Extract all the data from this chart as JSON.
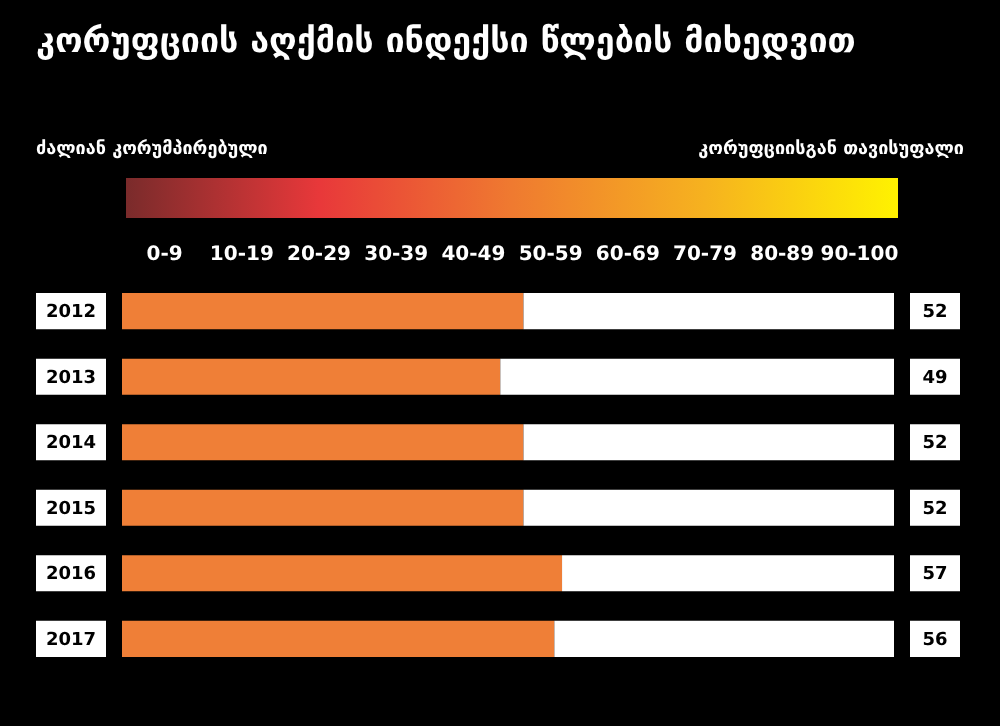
{
  "chart_data": {
    "type": "bar",
    "orientation": "horizontal",
    "title": "კორუფციის აღქმის ინდექსი წლების მიხედვით",
    "categories": [
      "2012",
      "2013",
      "2014",
      "2015",
      "2016",
      "2017"
    ],
    "values": [
      52,
      49,
      52,
      52,
      57,
      56
    ],
    "color": "#ef7f37",
    "xlim": [
      0,
      100
    ],
    "data_labels": true,
    "tick_labels": "y",
    "annotations": [
      "ძალიან კორუმპირებული",
      "კორუფციისგან თავისუფალი",
      "0-9",
      "10-19",
      "20-29",
      "30-39",
      "40-49",
      "50-59",
      "60-69",
      "70-79",
      "80-89",
      "90-100"
    ]
  }
}
